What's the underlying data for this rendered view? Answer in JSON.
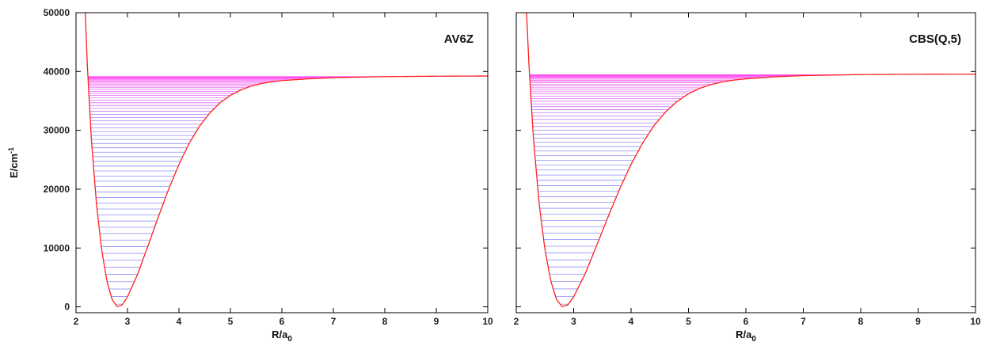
{
  "chart_data": [
    {
      "type": "line",
      "panel_label": "AV6Z",
      "xlabel": "R/a",
      "xlabel_sub": "0",
      "ylabel": "E/cm",
      "ylabel_sup": "-1",
      "xlim": [
        2,
        10
      ],
      "ylim": [
        -1000,
        50000
      ],
      "xticks": [
        2,
        3,
        4,
        5,
        6,
        7,
        8,
        9,
        10
      ],
      "yticks": [
        0,
        10000,
        20000,
        30000,
        40000,
        50000
      ],
      "potential": {
        "x": [
          2.18,
          2.22,
          2.3,
          2.4,
          2.5,
          2.6,
          2.7,
          2.8,
          2.9,
          3.0,
          3.2,
          3.4,
          3.6,
          3.8,
          4.0,
          4.2,
          4.4,
          4.6,
          4.8,
          5.0,
          5.2,
          5.4,
          5.6,
          5.8,
          6.0,
          6.5,
          7.0,
          8.0,
          9.0,
          10.0
        ],
        "y": [
          50000,
          41000,
          28200,
          17200,
          9600,
          4400,
          1250,
          0,
          340,
          1700,
          5600,
          10400,
          15300,
          20000,
          24200,
          27800,
          30700,
          32950,
          34700,
          35950,
          36850,
          37500,
          37950,
          38250,
          38450,
          38750,
          38950,
          39130,
          39200,
          39230
        ]
      },
      "levels": {
        "count": 60,
        "e_min": 450,
        "e_max": 39130,
        "color_low": "#7a7cf5",
        "color_high": "#ff3df0"
      },
      "curve_color": "#ff2020"
    },
    {
      "type": "line",
      "panel_label": "CBS(Q,5)",
      "xlabel": "R/a",
      "xlabel_sub": "0",
      "xlim": [
        2,
        10
      ],
      "ylim": [
        -1000,
        50000
      ],
      "xticks": [
        2,
        3,
        4,
        5,
        6,
        7,
        8,
        9,
        10
      ],
      "potential": {
        "x": [
          2.18,
          2.22,
          2.3,
          2.4,
          2.5,
          2.6,
          2.7,
          2.8,
          2.9,
          3.0,
          3.2,
          3.4,
          3.6,
          3.8,
          4.0,
          4.2,
          4.4,
          4.6,
          4.8,
          5.0,
          5.2,
          5.4,
          5.6,
          5.8,
          6.0,
          6.5,
          7.0,
          8.0,
          9.0,
          10.0
        ],
        "y": [
          50000,
          41300,
          28500,
          17400,
          9700,
          4450,
          1270,
          0,
          340,
          1700,
          5600,
          10400,
          15300,
          20000,
          24200,
          27800,
          30800,
          33100,
          34900,
          36200,
          37150,
          37800,
          38250,
          38550,
          38750,
          39100,
          39300,
          39480,
          39540,
          39560
        ]
      },
      "levels": {
        "count": 60,
        "e_min": 450,
        "e_max": 39430,
        "color_low": "#7a7cf5",
        "color_high": "#ff3df0"
      },
      "curve_color": "#ff2020"
    }
  ]
}
